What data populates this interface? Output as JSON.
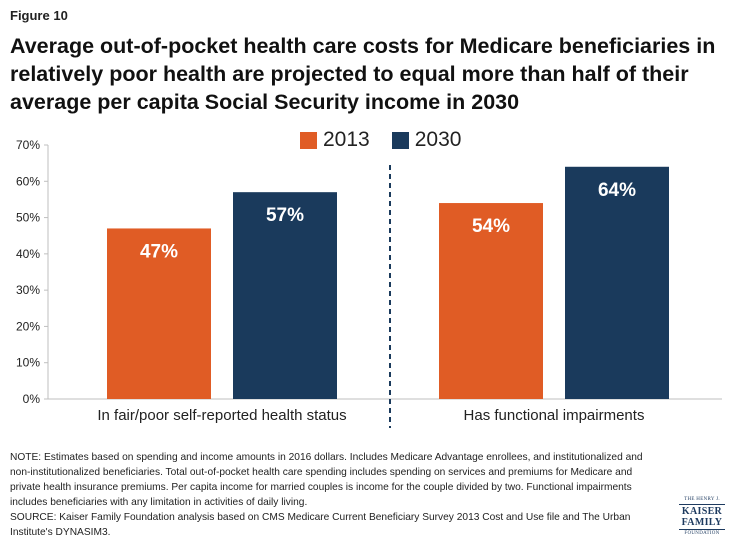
{
  "figure_label": "Figure 10",
  "title": "Average out-of-pocket health care costs for Medicare beneficiaries in relatively poor health are projected to equal more than half of their average per capita Social Security income in 2030",
  "colors": {
    "2013": "#e05c25",
    "2030": "#1a3a5c",
    "text": "#222222",
    "axis": "#bfbfbf",
    "divider": "#1a3a5c"
  },
  "chart_data": {
    "type": "bar",
    "title": "",
    "xlabel": "",
    "ylabel": "",
    "ylim": [
      0,
      70
    ],
    "yticks": [
      "0%",
      "10%",
      "20%",
      "30%",
      "40%",
      "50%",
      "60%",
      "70%"
    ],
    "ytick_values": [
      0,
      10,
      20,
      30,
      40,
      50,
      60,
      70
    ],
    "categories": [
      "In fair/poor self-reported health status",
      "Has functional impairments"
    ],
    "series": [
      {
        "name": "2013",
        "values": [
          47,
          54
        ],
        "labels": [
          "47%",
          "54%"
        ]
      },
      {
        "name": "2030",
        "values": [
          57,
          64
        ],
        "labels": [
          "57%",
          "64%"
        ]
      }
    ],
    "legend_position": "top-center",
    "grid": false
  },
  "notes": {
    "note": "NOTE: Estimates based on spending and income amounts in 2016 dollars. Includes Medicare Advantage enrollees, and institutionalized and non-institutionalized beneficiaries. Total out-of-pocket health care spending includes spending on services and premiums for Medicare and private health insurance premiums. Per capita income for married couples is income for the couple divided by two. Functional impairments includes beneficiaries with any limitation in activities of daily living.",
    "source": "SOURCE: Kaiser Family Foundation analysis based on CMS Medicare Current Beneficiary Survey 2013 Cost and Use file and The Urban Institute's DYNASIM3."
  },
  "logo": {
    "line1": "THE HENRY J.",
    "line2": "KAISER",
    "line3": "FAMILY",
    "line4": "FOUNDATION"
  }
}
